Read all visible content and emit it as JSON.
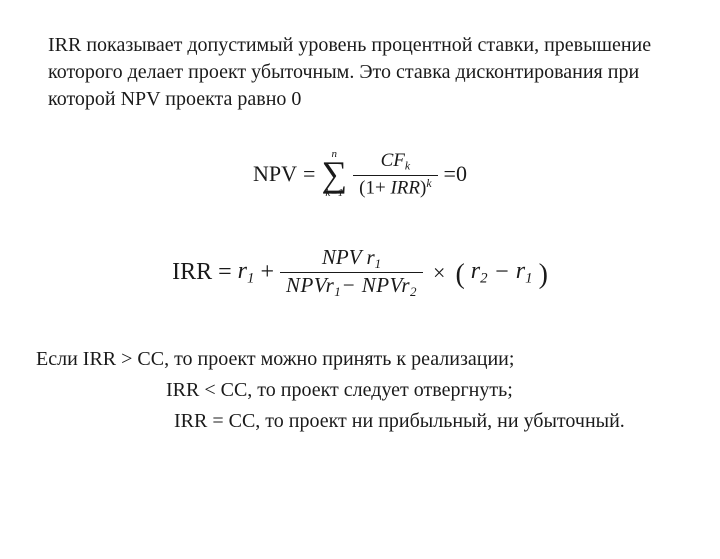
{
  "colors": {
    "text": "#1a1a1a",
    "background": "#ffffff",
    "rule": "#1a1a1a"
  },
  "typography": {
    "family": "Times New Roman",
    "body_size_pt": 15,
    "formula_size_pt": 17
  },
  "intro": {
    "text": "IRR  показывает допустимый уровень процентной ставки, превышение которого делает проект убыточным. Это ставка дисконтирования при которой NPV проекта равно 0"
  },
  "formula_npv": {
    "lhs": "NPV",
    "eq": "=",
    "sigma_upper": "n",
    "sigma_symbol": "∑",
    "sigma_lower": "k=1",
    "frac_num_cf": "CF",
    "frac_num_sub": "k",
    "frac_den_open": "(1+",
    "frac_den_irr": " IRR",
    "frac_den_close": ")",
    "frac_den_sup": "k",
    "rhs": "=0"
  },
  "formula_irr": {
    "lhs": "IRR",
    "eq1": " = ",
    "r1": "r",
    "r1_sub": "1",
    "plus": " + ",
    "frac_num_npv": "NPV ",
    "frac_num_r": "r",
    "frac_num_sub": "1",
    "frac_den_npv1": "NPV",
    "frac_den_r1": "r",
    "frac_den_r1_sub": "1",
    "frac_den_minus": "− ",
    "frac_den_npv2": "NPV",
    "frac_den_r2": "r",
    "frac_den_r2_sub": "2",
    "times": "×",
    "paren_open": "(",
    "r2": "r",
    "r2_sub": "2",
    "minus": " − ",
    "r1b": "r",
    "r1b_sub": "1",
    "paren_close": ")"
  },
  "conclusions": {
    "line1": "Если  IRR > CC,  то проект  можно принять  к  реализации;",
    "line2": "IRR < CC,  то проект следует отвергнуть;",
    "line3": "IRR = CC,  то проект ни прибыльный, ни убыточный."
  }
}
